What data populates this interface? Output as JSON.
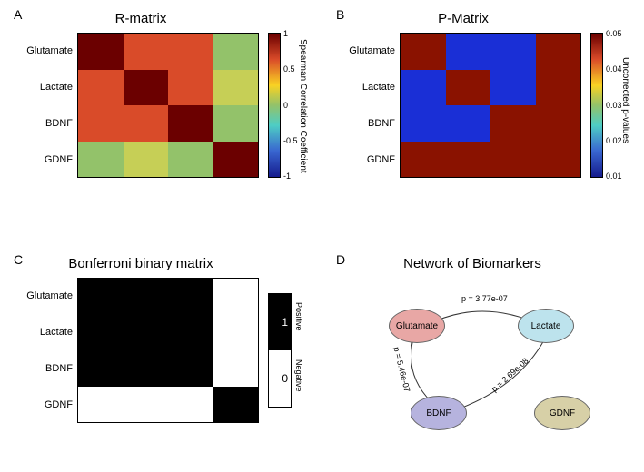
{
  "rows": [
    "Glutamate",
    "Lactate",
    "BDNF",
    "GDNF"
  ],
  "panelA": {
    "label": "A",
    "title": "R-matrix",
    "cbar_label": "Spearman Correlation Coefficient",
    "ticks": [
      "1",
      "0.5",
      "0",
      "-0.5",
      "-1"
    ],
    "colors": [
      [
        "#6b0000",
        "#d94b29",
        "#d94b29",
        "#93c26a"
      ],
      [
        "#d94b29",
        "#6b0000",
        "#d94b29",
        "#c6cf56"
      ],
      [
        "#d94b29",
        "#d94b29",
        "#6b0000",
        "#93c26a"
      ],
      [
        "#93c26a",
        "#c6cf56",
        "#93c26a",
        "#6b0000"
      ]
    ]
  },
  "panelB": {
    "label": "B",
    "title": "P-Matrix",
    "cbar_label": "Uncorrected p-values",
    "ticks": [
      "0.05",
      "0.04",
      "0.03",
      "0.02",
      "0.01"
    ],
    "colors": [
      [
        "#8a1200",
        "#1a2fd6",
        "#1a2fd6",
        "#8a1200"
      ],
      [
        "#1a2fd6",
        "#8a1200",
        "#1a2fd6",
        "#8a1200"
      ],
      [
        "#1a2fd6",
        "#1a2fd6",
        "#8a1200",
        "#8a1200"
      ],
      [
        "#8a1200",
        "#8a1200",
        "#8a1200",
        "#8a1200"
      ]
    ]
  },
  "panelC": {
    "label": "C",
    "title": "Bonferroni binary matrix",
    "legend": {
      "pos": "Positive",
      "neg": "Negative",
      "one": "1",
      "zero": "0"
    },
    "colors": [
      [
        "#000",
        "#000",
        "#000",
        "#fff"
      ],
      [
        "#000",
        "#000",
        "#000",
        "#fff"
      ],
      [
        "#000",
        "#000",
        "#000",
        "#fff"
      ],
      [
        "#fff",
        "#fff",
        "#fff",
        "#000"
      ]
    ]
  },
  "panelD": {
    "label": "D",
    "title": "Network of Biomarkers",
    "nodes": {
      "glutamate": {
        "label": "Glutamate",
        "fill": "#e8a7a5"
      },
      "lactate": {
        "label": "Lactate",
        "fill": "#bde3ed"
      },
      "bdnf": {
        "label": "BDNF",
        "fill": "#b6b3de"
      },
      "gdnf": {
        "label": "GDNF",
        "fill": "#d7d0a7"
      }
    },
    "edges": {
      "gl": "p = 3.77e-07",
      "lb": "p = 2.69e-08",
      "gb": "p = 5.46e-07"
    }
  }
}
